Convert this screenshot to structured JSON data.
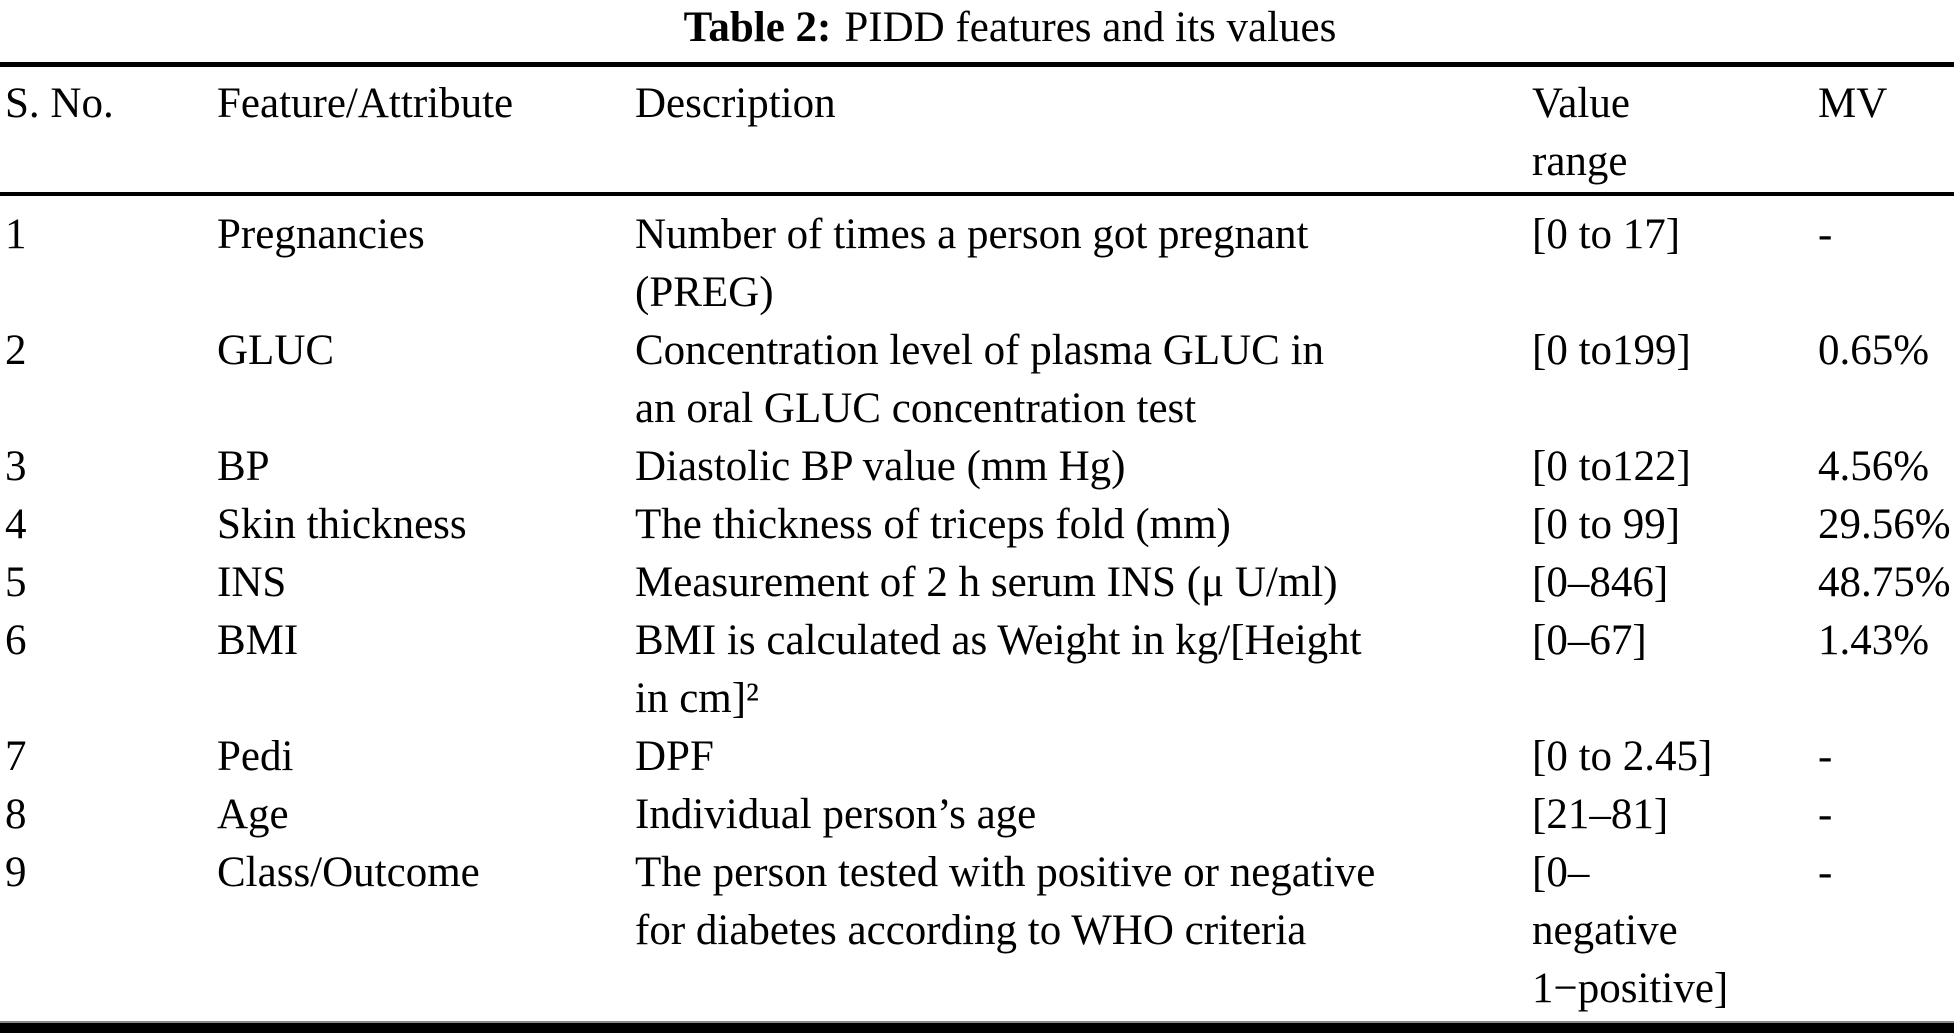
{
  "colors": {
    "text": "#000000",
    "background": "#ffffff",
    "rule": "#000000"
  },
  "title": {
    "label": "Table 2:",
    "text": "PIDD features and its values"
  },
  "table": {
    "headers": {
      "sno": "S. No.",
      "feature": "Feature/Attribute",
      "description": "Description",
      "value_range_lines": [
        "Value",
        "range"
      ],
      "mv": "MV"
    },
    "rows": [
      {
        "sno": "1",
        "feature": "Pregnancies",
        "description": [
          "Number of times a person got pregnant",
          "(PREG)"
        ],
        "value_range": [
          "[0 to 17]"
        ],
        "mv": "-"
      },
      {
        "sno": "2",
        "feature": "GLUC",
        "description": [
          "Concentration level of plasma GLUC in",
          "an oral GLUC concentration test"
        ],
        "value_range": [
          "[0 to199]"
        ],
        "mv": "0.65%"
      },
      {
        "sno": "3",
        "feature": "BP",
        "description": [
          "Diastolic BP value (mm Hg)"
        ],
        "value_range": [
          "[0 to122]"
        ],
        "mv": "4.56%"
      },
      {
        "sno": "4",
        "feature": "Skin thickness",
        "description": [
          "The thickness of triceps fold (mm)"
        ],
        "value_range": [
          "[0 to 99]"
        ],
        "mv": "29.56%"
      },
      {
        "sno": "5",
        "feature": "INS",
        "description": [
          "Measurement of 2 h serum INS (μ U/ml)"
        ],
        "value_range": [
          "[0–846]"
        ],
        "mv": "48.75%"
      },
      {
        "sno": "6",
        "feature": "BMI",
        "description": [
          "BMI is calculated as Weight in kg/[Height",
          "in cm]²"
        ],
        "value_range": [
          "[0–67]"
        ],
        "mv": "1.43%"
      },
      {
        "sno": "7",
        "feature": "Pedi",
        "description": [
          "DPF"
        ],
        "value_range": [
          "[0 to 2.45]"
        ],
        "mv": "-"
      },
      {
        "sno": "8",
        "feature": "Age",
        "description": [
          "Individual person’s age"
        ],
        "value_range": [
          "[21–81]"
        ],
        "mv": "-"
      },
      {
        "sno": "9",
        "feature": "Class/Outcome",
        "description": [
          "The person tested with positive or negative",
          "for diabetes according to WHO criteria"
        ],
        "value_range": [
          "[0–",
          "negative",
          "1−positive]"
        ],
        "mv": "-"
      }
    ]
  }
}
